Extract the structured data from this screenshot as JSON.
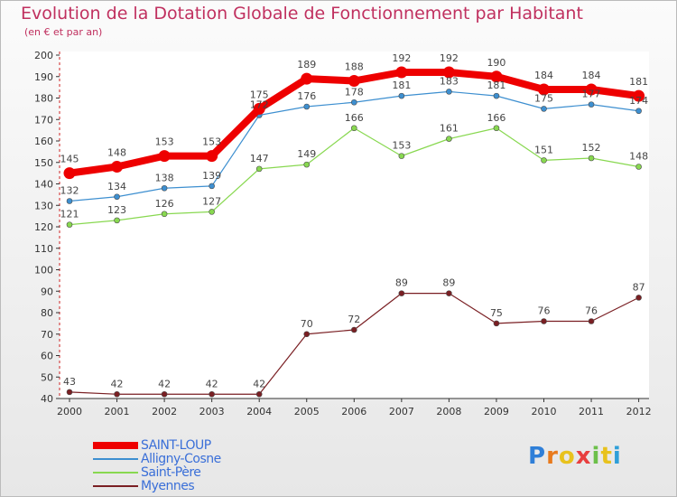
{
  "header": {
    "title": "Evolution de la Dotation Globale de Fonctionnement par Habitant",
    "subtitle": "(en € et par an)"
  },
  "logo": {
    "letters": [
      "P",
      "r",
      "o",
      "x",
      "i",
      "t",
      "i"
    ],
    "colors": [
      "#2f7fd8",
      "#e87a1d",
      "#e8c21d",
      "#e83f3f",
      "#6cc04a",
      "#e8c21d",
      "#2f9fd8"
    ]
  },
  "chart_data": {
    "type": "line",
    "title": "Evolution de la Dotation Globale de Fonctionnement par Habitant",
    "subtitle": "(en € et par an)",
    "xlabel": "",
    "ylabel": "",
    "x": [
      "2000",
      "2001",
      "2002",
      "2003",
      "2004",
      "2005",
      "2006",
      "2007",
      "2008",
      "2009",
      "2010",
      "2011",
      "2012"
    ],
    "ylim": [
      40,
      200
    ],
    "yticks": [
      40,
      50,
      60,
      70,
      80,
      90,
      100,
      110,
      120,
      130,
      140,
      150,
      160,
      170,
      180,
      190,
      200
    ],
    "grid": false,
    "legend_position": "bottom-left",
    "series": [
      {
        "name": "SAINT-LOUP",
        "color": "#ee0000",
        "values": [
          145,
          148,
          153,
          153,
          175,
          189,
          188,
          192,
          192,
          190,
          184,
          184,
          181
        ]
      },
      {
        "name": "Alligny-Cosne",
        "color": "#3d8fd0",
        "values": [
          132,
          134,
          138,
          139,
          172,
          176,
          178,
          181,
          183,
          181,
          175,
          177,
          174
        ]
      },
      {
        "name": "Saint-Père",
        "color": "#88d850",
        "values": [
          121,
          123,
          126,
          127,
          147,
          149,
          166,
          153,
          161,
          166,
          151,
          152,
          148
        ]
      },
      {
        "name": "Myennes",
        "color": "#7a1f23",
        "values": [
          43,
          42,
          42,
          42,
          42,
          70,
          72,
          89,
          89,
          75,
          76,
          76,
          87
        ]
      }
    ]
  }
}
